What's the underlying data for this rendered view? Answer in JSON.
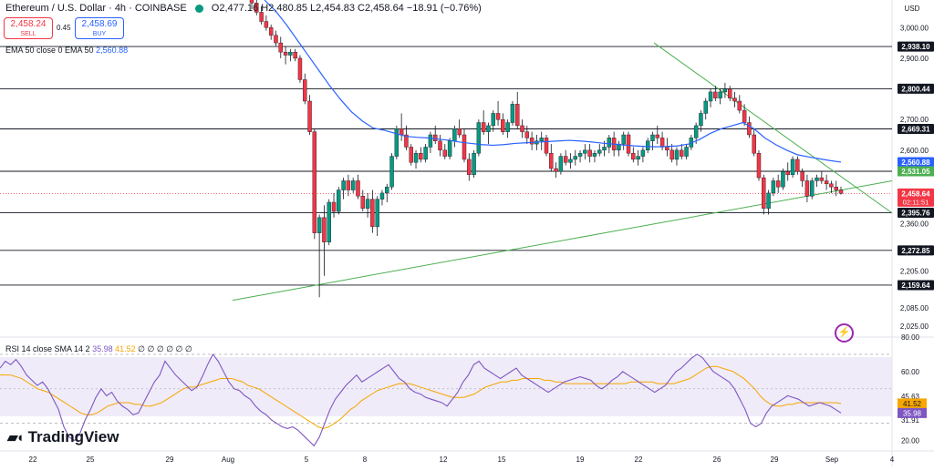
{
  "header": {
    "symbol": "Ethereum / U.S. Dollar · 4h · COINBASE",
    "ohlc": "O2,477.16  H2,480.85  L2,454.83  C2,458.64  −18.91 (−0.76%)",
    "sell_price": "2,458.24",
    "sell_label": "SELL",
    "spread": "0.45",
    "buy_price": "2,458.69",
    "buy_label": "BUY",
    "ema_label": "EMA 50 close 0 EMA 50",
    "ema_value": "2,560.88",
    "rsi_label": "RSI 14 close SMA 14 2",
    "rsi_value": "35.98",
    "rsi_sma_value": "41.52",
    "rsi_extra": "∅ ∅ ∅ ∅ ∅ ∅",
    "currency": "USD",
    "logo": "TradingView",
    "colors": {
      "up": "#089981",
      "down": "#f23645",
      "ema": "#2962ff",
      "rsi": "#7e57c2",
      "rsi_sma": "#f7a600",
      "trend": "#4caf50"
    },
    "icons": [
      "lightning-icon",
      "tradingview-logo-icon"
    ]
  },
  "chart_data": [
    {
      "type": "candlestick",
      "title": "Ethereum / U.S. Dollar · 4h · COINBASE",
      "ylabel": "USD",
      "ylim": [
        1990,
        3090
      ],
      "y_ticks": [
        "3,000.00",
        "2,900.00",
        "2,700.00",
        "2,600.00",
        "2,360.00",
        "2,205.00",
        "2,085.00",
        "2,025.00"
      ],
      "x_ticks": [
        "22",
        "25",
        "29",
        "Aug",
        "5",
        "8",
        "12",
        "15",
        "19",
        "22",
        "26",
        "29",
        "Sep",
        "4"
      ],
      "grid": false,
      "price_levels": [
        {
          "value": 2938.1,
          "label": "2,938.10"
        },
        {
          "value": 2800.44,
          "label": "2,800.44"
        },
        {
          "value": 2669.31,
          "label": "2,669.31"
        },
        {
          "value": 2531.05,
          "label": "2,531.05"
        },
        {
          "value": 2395.76,
          "label": "2,395.76"
        },
        {
          "value": 2272.85,
          "label": "2,272.85"
        },
        {
          "value": 2159.64,
          "label": "2,159.64"
        }
      ],
      "ema_last": {
        "value": 2560.88,
        "label": "2,560.88"
      },
      "last_price": {
        "value": 2458.64,
        "label": "2,458.64",
        "countdown": "02:11:51"
      },
      "candles_date_range": [
        "Aug 3",
        "Sep 2"
      ],
      "candles": [
        [
          3120,
          3140,
          3060,
          3080
        ],
        [
          3080,
          3110,
          3040,
          3050
        ],
        [
          3050,
          3070,
          3010,
          3020
        ],
        [
          3020,
          3040,
          2990,
          3000
        ],
        [
          3000,
          3010,
          2960,
          2975
        ],
        [
          2975,
          2990,
          2940,
          2950
        ],
        [
          2950,
          2970,
          2900,
          2920
        ],
        [
          2920,
          2940,
          2880,
          2910
        ],
        [
          2910,
          2930,
          2890,
          2920
        ],
        [
          2920,
          2930,
          2890,
          2900
        ],
        [
          2900,
          2910,
          2820,
          2830
        ],
        [
          2830,
          2850,
          2750,
          2760
        ],
        [
          2760,
          2780,
          2650,
          2660
        ],
        [
          2660,
          2670,
          2310,
          2330
        ],
        [
          2330,
          2390,
          2120,
          2380
        ],
        [
          2380,
          2420,
          2190,
          2300
        ],
        [
          2300,
          2440,
          2290,
          2430
        ],
        [
          2430,
          2460,
          2380,
          2400
        ],
        [
          2400,
          2480,
          2390,
          2470
        ],
        [
          2470,
          2510,
          2440,
          2500
        ],
        [
          2500,
          2520,
          2450,
          2470
        ],
        [
          2470,
          2510,
          2460,
          2500
        ],
        [
          2500,
          2520,
          2440,
          2450
        ],
        [
          2450,
          2470,
          2400,
          2410
        ],
        [
          2410,
          2460,
          2380,
          2440
        ],
        [
          2440,
          2470,
          2330,
          2350
        ],
        [
          2350,
          2450,
          2320,
          2440
        ],
        [
          2440,
          2470,
          2420,
          2460
        ],
        [
          2460,
          2490,
          2430,
          2480
        ],
        [
          2480,
          2590,
          2470,
          2580
        ],
        [
          2580,
          2680,
          2570,
          2670
        ],
        [
          2670,
          2720,
          2630,
          2650
        ],
        [
          2650,
          2680,
          2600,
          2610
        ],
        [
          2610,
          2620,
          2550,
          2560
        ],
        [
          2560,
          2600,
          2540,
          2590
        ],
        [
          2590,
          2610,
          2560,
          2570
        ],
        [
          2570,
          2620,
          2560,
          2610
        ],
        [
          2610,
          2660,
          2590,
          2650
        ],
        [
          2650,
          2680,
          2620,
          2630
        ],
        [
          2630,
          2650,
          2580,
          2600
        ],
        [
          2600,
          2620,
          2570,
          2580
        ],
        [
          2580,
          2640,
          2570,
          2630
        ],
        [
          2630,
          2680,
          2610,
          2670
        ],
        [
          2670,
          2700,
          2640,
          2650
        ],
        [
          2650,
          2670,
          2560,
          2570
        ],
        [
          2570,
          2590,
          2500,
          2520
        ],
        [
          2520,
          2600,
          2510,
          2590
        ],
        [
          2590,
          2700,
          2580,
          2690
        ],
        [
          2690,
          2730,
          2650,
          2660
        ],
        [
          2660,
          2690,
          2620,
          2680
        ],
        [
          2680,
          2730,
          2660,
          2720
        ],
        [
          2720,
          2760,
          2680,
          2700
        ],
        [
          2700,
          2720,
          2650,
          2660
        ],
        [
          2660,
          2700,
          2640,
          2690
        ],
        [
          2690,
          2760,
          2680,
          2750
        ],
        [
          2750,
          2790,
          2670,
          2680
        ],
        [
          2680,
          2700,
          2640,
          2660
        ],
        [
          2660,
          2680,
          2620,
          2640
        ],
        [
          2640,
          2660,
          2600,
          2620
        ],
        [
          2620,
          2650,
          2600,
          2630
        ],
        [
          2630,
          2660,
          2600,
          2640
        ],
        [
          2640,
          2650,
          2580,
          2590
        ],
        [
          2590,
          2620,
          2530,
          2540
        ],
        [
          2540,
          2560,
          2510,
          2530
        ],
        [
          2530,
          2590,
          2520,
          2580
        ],
        [
          2580,
          2600,
          2550,
          2560
        ],
        [
          2560,
          2590,
          2540,
          2570
        ],
        [
          2570,
          2600,
          2550,
          2580
        ],
        [
          2580,
          2600,
          2560,
          2590
        ],
        [
          2590,
          2620,
          2570,
          2600
        ],
        [
          2600,
          2620,
          2560,
          2580
        ],
        [
          2580,
          2600,
          2560,
          2590
        ],
        [
          2590,
          2620,
          2580,
          2600
        ],
        [
          2600,
          2630,
          2580,
          2610
        ],
        [
          2610,
          2650,
          2590,
          2640
        ],
        [
          2640,
          2660,
          2580,
          2600
        ],
        [
          2600,
          2630,
          2580,
          2620
        ],
        [
          2620,
          2660,
          2600,
          2650
        ],
        [
          2650,
          2660,
          2580,
          2590
        ],
        [
          2590,
          2610,
          2560,
          2570
        ],
        [
          2570,
          2600,
          2550,
          2580
        ],
        [
          2580,
          2610,
          2560,
          2600
        ],
        [
          2600,
          2640,
          2590,
          2630
        ],
        [
          2630,
          2660,
          2600,
          2650
        ],
        [
          2650,
          2680,
          2620,
          2640
        ],
        [
          2640,
          2660,
          2600,
          2610
        ],
        [
          2610,
          2640,
          2580,
          2600
        ],
        [
          2600,
          2620,
          2560,
          2570
        ],
        [
          2570,
          2610,
          2550,
          2600
        ],
        [
          2600,
          2620,
          2570,
          2580
        ],
        [
          2580,
          2620,
          2570,
          2610
        ],
        [
          2610,
          2650,
          2600,
          2640
        ],
        [
          2640,
          2690,
          2620,
          2680
        ],
        [
          2680,
          2730,
          2660,
          2720
        ],
        [
          2720,
          2770,
          2700,
          2760
        ],
        [
          2760,
          2800,
          2740,
          2790
        ],
        [
          2790,
          2810,
          2760,
          2770
        ],
        [
          2770,
          2800,
          2750,
          2790
        ],
        [
          2790,
          2820,
          2770,
          2800
        ],
        [
          2800,
          2810,
          2760,
          2770
        ],
        [
          2770,
          2790,
          2740,
          2760
        ],
        [
          2760,
          2780,
          2720,
          2730
        ],
        [
          2730,
          2750,
          2680,
          2690
        ],
        [
          2690,
          2710,
          2640,
          2650
        ],
        [
          2650,
          2670,
          2580,
          2590
        ],
        [
          2590,
          2600,
          2500,
          2510
        ],
        [
          2510,
          2520,
          2390,
          2410
        ],
        [
          2410,
          2470,
          2390,
          2460
        ],
        [
          2460,
          2510,
          2450,
          2500
        ],
        [
          2500,
          2520,
          2460,
          2480
        ],
        [
          2480,
          2540,
          2470,
          2530
        ],
        [
          2530,
          2560,
          2500,
          2520
        ],
        [
          2520,
          2580,
          2510,
          2570
        ],
        [
          2570,
          2580,
          2520,
          2530
        ],
        [
          2530,
          2540,
          2480,
          2500
        ],
        [
          2500,
          2520,
          2430,
          2450
        ],
        [
          2450,
          2510,
          2440,
          2500
        ],
        [
          2500,
          2520,
          2480,
          2510
        ],
        [
          2510,
          2530,
          2490,
          2500
        ],
        [
          2500,
          2520,
          2470,
          2490
        ],
        [
          2490,
          2500,
          2460,
          2480
        ],
        [
          2480,
          2500,
          2450,
          2470
        ],
        [
          2470,
          2481,
          2455,
          2459
        ]
      ],
      "ema50": [
        3090,
        3055,
        3010,
        2960,
        2910,
        2860,
        2810,
        2765,
        2725,
        2695,
        2672,
        2665,
        2655,
        2645,
        2642,
        2640,
        2636,
        2632,
        2626,
        2622,
        2618,
        2616,
        2618,
        2622,
        2624,
        2626,
        2628,
        2630,
        2632,
        2630,
        2627,
        2623,
        2620,
        2617,
        2614,
        2612,
        2611,
        2612,
        2614,
        2620,
        2635,
        2655,
        2670,
        2680,
        2690,
        2670,
        2640,
        2618,
        2600,
        2585,
        2578,
        2572,
        2566,
        2561
      ],
      "trendlines": [
        {
          "from": [
            "Aug 5",
            2110
          ],
          "to": [
            "Sep 4",
            2500
          ]
        },
        {
          "from": [
            "Aug 23",
            2950
          ],
          "to": [
            "Sep 4",
            2395
          ]
        }
      ]
    },
    {
      "type": "line",
      "title": "RSI 14 close SMA 14 2",
      "ylim": [
        14,
        80
      ],
      "y_ticks": [
        "80.00",
        "60.00",
        "45.63",
        "41.52",
        "35.98",
        "31.91",
        "20.00"
      ],
      "band": [
        30,
        70
      ],
      "series": [
        {
          "values": [
            62,
            66,
            64,
            67,
            63,
            58,
            55,
            52,
            54,
            50,
            44,
            38,
            28,
            22,
            20,
            24,
            32,
            38,
            45,
            50,
            46,
            48,
            43,
            40,
            38,
            35,
            36,
            42,
            48,
            54,
            58,
            66,
            62,
            58,
            55,
            52,
            49,
            51,
            57,
            64,
            70,
            66,
            60,
            54,
            50,
            49,
            46,
            44,
            40,
            37,
            35,
            32,
            30,
            28,
            27,
            28,
            26,
            23,
            20,
            17,
            22,
            30,
            38,
            44,
            48,
            52,
            55,
            58,
            54,
            56,
            58,
            60,
            62,
            64,
            60,
            56,
            54,
            50,
            48,
            47,
            45,
            44,
            43,
            42,
            40,
            44,
            48,
            54,
            58,
            64,
            66,
            62,
            60,
            58,
            56,
            58,
            60,
            62,
            58,
            56,
            54,
            52,
            50,
            48,
            50,
            52,
            54,
            55,
            56,
            57,
            56,
            55,
            52,
            50,
            52,
            55,
            57,
            60,
            58,
            56,
            54,
            52,
            50,
            48,
            50,
            52,
            56,
            60,
            62,
            65,
            68,
            70,
            68,
            64,
            60,
            58,
            56,
            54,
            50,
            44,
            38,
            30,
            28,
            30,
            36,
            40,
            42,
            44,
            46,
            45,
            44,
            42,
            40,
            41,
            42,
            41,
            40,
            38,
            36
          ]
        },
        {
          "values": [
            58,
            58,
            58,
            57,
            56,
            54,
            52,
            50,
            49,
            48,
            46,
            44,
            42,
            40,
            38,
            36,
            35,
            35,
            36,
            38,
            40,
            41,
            42,
            42,
            42,
            41,
            41,
            40,
            40,
            41,
            42,
            44,
            46,
            48,
            50,
            51,
            51,
            52,
            53,
            54,
            55,
            56,
            56,
            56,
            55,
            54,
            52,
            51,
            50,
            48,
            46,
            44,
            42,
            40,
            38,
            36,
            34,
            32,
            30,
            28,
            27,
            28,
            30,
            32,
            35,
            38,
            40,
            43,
            45,
            47,
            49,
            50,
            51,
            52,
            53,
            53,
            53,
            52,
            51,
            50,
            49,
            48,
            47,
            46,
            45,
            45,
            45,
            46,
            47,
            49,
            51,
            52,
            53,
            54,
            54,
            55,
            55,
            56,
            56,
            56,
            56,
            55,
            55,
            54,
            54,
            53,
            53,
            53,
            53,
            53,
            53,
            53,
            53,
            53,
            53,
            53,
            53,
            54,
            54,
            54,
            54,
            54,
            53,
            53,
            53,
            53,
            54,
            55,
            56,
            58,
            60,
            62,
            63,
            63,
            62,
            61,
            60,
            58,
            56,
            53,
            50,
            46,
            43,
            41,
            40,
            40,
            41,
            41,
            42,
            42,
            42,
            42,
            42,
            42,
            42,
            42,
            41.5
          ]
        }
      ]
    }
  ]
}
